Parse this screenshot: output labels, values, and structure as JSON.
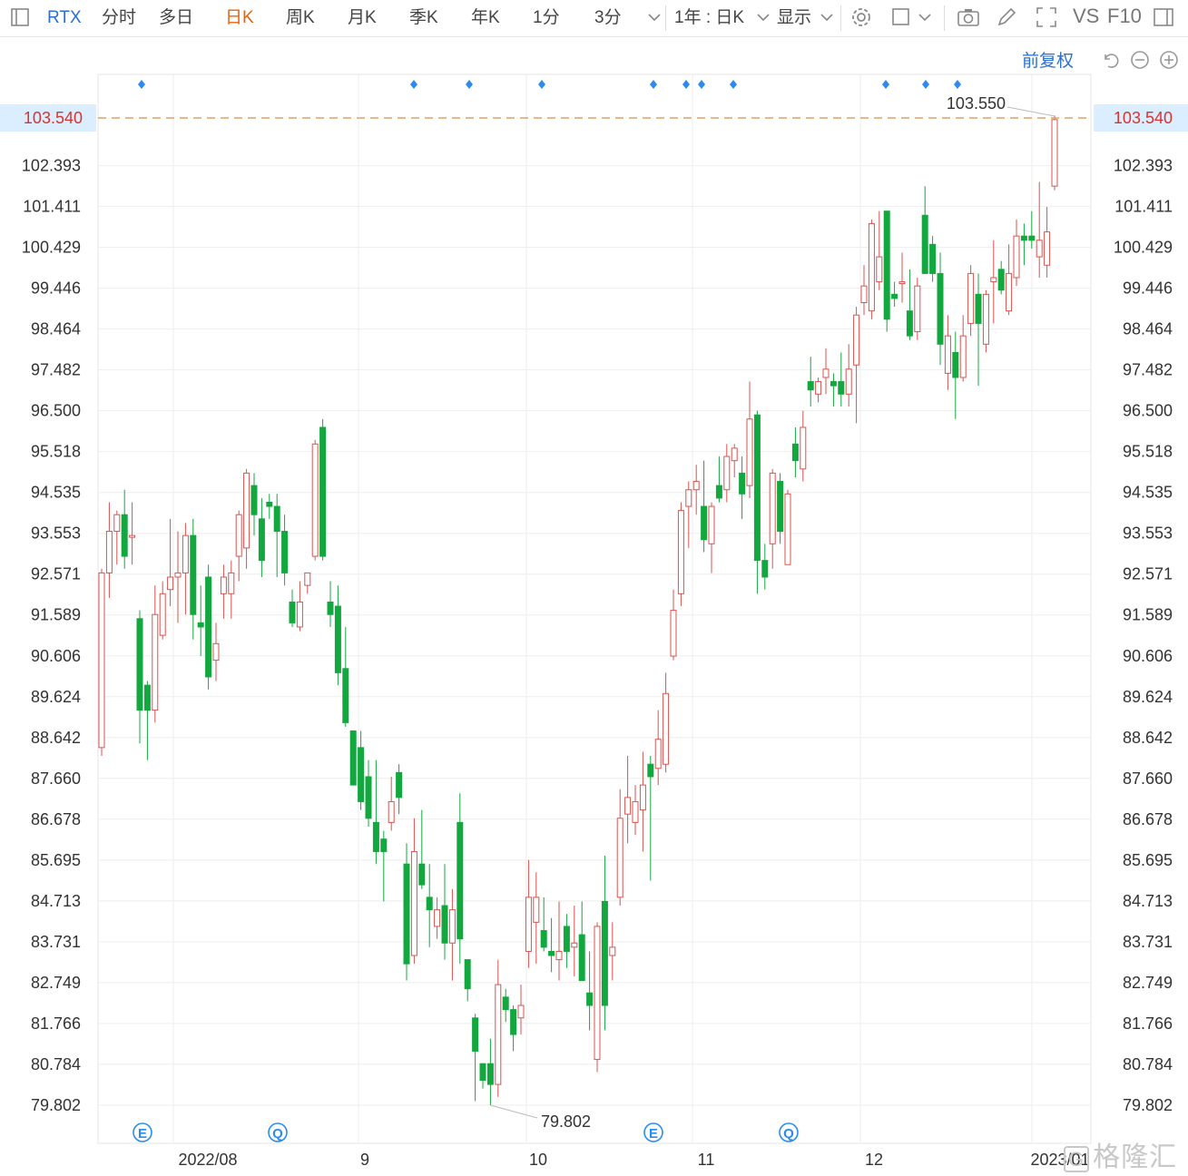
{
  "toolbar": {
    "symbol": "RTX",
    "tabs": [
      "分时",
      "多日",
      "日K",
      "周K",
      "月K",
      "季K",
      "年K",
      "1分",
      "3分"
    ],
    "active_tab": "日K",
    "period_select": "1年 : 日K",
    "display_label": "显示",
    "vs_label": "VS",
    "f10_label": "F10"
  },
  "adjust_label": "前复权",
  "price_line": {
    "value": "103.540",
    "color": "#e0a060"
  },
  "high_annotation": "103.550",
  "low_annotation": "79.802",
  "event_markers": [
    "E",
    "Q",
    "E",
    "Q"
  ],
  "watermark": "格隆汇",
  "colors": {
    "up": "#d9534f",
    "down": "#13a83f",
    "accent": "#2a6fd1",
    "price_bg": "#dbeeff",
    "price_text": "#d9332e",
    "grid": "#eeeeee",
    "marker": "#2a8cf0"
  },
  "chart_data": {
    "type": "candlestick",
    "title": "RTX",
    "ylim": [
      79.0,
      104.4
    ],
    "y_ticks": [
      "102.393",
      "101.411",
      "100.429",
      "99.446",
      "98.464",
      "97.482",
      "96.500",
      "95.518",
      "94.535",
      "93.553",
      "92.571",
      "91.589",
      "90.606",
      "89.624",
      "88.642",
      "87.660",
      "86.678",
      "85.695",
      "84.713",
      "83.731",
      "82.749",
      "81.766",
      "80.784",
      "79.802"
    ],
    "x_tick_labels": [
      "2022/08",
      "9",
      "10",
      "11",
      "12",
      "2023/01"
    ],
    "candles": [
      [
        88.4,
        92.6,
        88.2,
        92.7
      ],
      [
        92.6,
        93.6,
        92.0,
        94.3
      ],
      [
        93.6,
        94.0,
        92.8,
        94.1
      ],
      [
        94.0,
        93.0,
        92.7,
        94.6
      ],
      [
        93.5,
        93.5,
        92.8,
        94.3
      ],
      [
        91.5,
        89.3,
        88.5,
        91.7
      ],
      [
        89.9,
        89.3,
        88.1,
        90.0
      ],
      [
        89.3,
        91.6,
        89.0,
        92.3
      ],
      [
        91.1,
        92.1,
        91.0,
        92.4
      ],
      [
        92.2,
        92.5,
        91.8,
        93.9
      ],
      [
        92.5,
        92.6,
        91.4,
        93.6
      ],
      [
        92.6,
        93.5,
        91.6,
        93.8
      ],
      [
        93.5,
        91.6,
        91.0,
        93.9
      ],
      [
        91.4,
        91.3,
        90.6,
        92.3
      ],
      [
        92.5,
        90.1,
        89.8,
        92.8
      ],
      [
        90.5,
        90.9,
        90.0,
        91.4
      ],
      [
        92.1,
        92.5,
        91.5,
        92.8
      ],
      [
        92.1,
        92.6,
        91.5,
        92.9
      ],
      [
        93.0,
        94.0,
        92.4,
        94.1
      ],
      [
        93.2,
        95.0,
        92.7,
        95.1
      ],
      [
        94.7,
        94.0,
        93.5,
        95.0
      ],
      [
        93.9,
        92.9,
        92.5,
        94.4
      ],
      [
        94.3,
        94.2,
        93.9,
        94.5
      ],
      [
        94.2,
        93.6,
        92.5,
        94.5
      ],
      [
        93.6,
        92.6,
        92.3,
        94.0
      ],
      [
        91.9,
        91.4,
        91.3,
        92.2
      ],
      [
        91.3,
        91.9,
        91.2,
        92.4
      ],
      [
        92.3,
        92.6,
        92.1,
        92.6
      ],
      [
        93.0,
        95.7,
        92.9,
        95.8
      ],
      [
        96.1,
        93.0,
        92.9,
        96.3
      ],
      [
        91.9,
        91.6,
        91.3,
        92.4
      ],
      [
        91.8,
        90.2,
        89.9,
        92.3
      ],
      [
        90.3,
        89.0,
        88.9,
        91.3
      ],
      [
        88.8,
        87.5,
        87.5,
        88.8
      ],
      [
        88.4,
        87.1,
        86.9,
        88.8
      ],
      [
        87.7,
        86.7,
        86.5,
        88.1
      ],
      [
        86.6,
        85.9,
        85.6,
        88.1
      ],
      [
        86.2,
        85.9,
        84.7,
        86.4
      ],
      [
        86.6,
        87.1,
        86.4,
        87.7
      ],
      [
        87.8,
        87.2,
        86.8,
        88.0
      ],
      [
        85.6,
        83.2,
        82.8,
        86.1
      ],
      [
        83.4,
        85.9,
        83.2,
        86.7
      ],
      [
        85.6,
        85.1,
        85.0,
        86.9
      ],
      [
        84.8,
        84.5,
        83.6,
        85.6
      ],
      [
        84.1,
        84.5,
        83.8,
        84.8
      ],
      [
        84.6,
        83.7,
        83.3,
        85.6
      ],
      [
        83.7,
        84.5,
        82.8,
        85.0
      ],
      [
        86.6,
        83.8,
        83.2,
        87.3
      ],
      [
        83.3,
        82.6,
        82.3,
        83.3
      ],
      [
        81.9,
        81.1,
        79.9,
        82.0
      ],
      [
        80.8,
        80.4,
        80.2,
        80.8
      ],
      [
        80.8,
        80.3,
        79.8,
        81.4
      ],
      [
        80.3,
        82.7,
        80.0,
        83.3
      ],
      [
        82.4,
        82.1,
        81.8,
        82.6
      ],
      [
        82.1,
        81.5,
        81.1,
        82.2
      ],
      [
        81.9,
        82.2,
        81.5,
        82.7
      ],
      [
        83.5,
        84.8,
        83.1,
        85.7
      ],
      [
        84.2,
        84.8,
        83.2,
        85.4
      ],
      [
        84.0,
        83.6,
        83.5,
        84.8
      ],
      [
        83.5,
        83.4,
        83.0,
        84.3
      ],
      [
        83.3,
        83.5,
        82.8,
        84.7
      ],
      [
        84.1,
        83.5,
        83.1,
        84.4
      ],
      [
        83.6,
        83.7,
        82.9,
        84.6
      ],
      [
        83.9,
        82.8,
        82.8,
        84.7
      ],
      [
        82.5,
        82.2,
        81.6,
        83.5
      ],
      [
        80.9,
        84.1,
        80.6,
        84.2
      ],
      [
        84.7,
        82.2,
        81.6,
        85.8
      ],
      [
        83.4,
        83.6,
        82.8,
        84.2
      ],
      [
        84.8,
        86.7,
        84.6,
        87.4
      ],
      [
        86.8,
        87.2,
        86.1,
        88.2
      ],
      [
        86.6,
        87.1,
        86.3,
        87.5
      ],
      [
        86.9,
        87.5,
        85.9,
        88.3
      ],
      [
        88.0,
        87.7,
        85.2,
        88.2
      ],
      [
        87.9,
        88.6,
        87.5,
        89.3
      ],
      [
        88.0,
        89.7,
        87.8,
        90.2
      ],
      [
        90.6,
        91.7,
        90.5,
        92.2
      ],
      [
        92.1,
        94.1,
        91.8,
        94.3
      ],
      [
        94.2,
        94.6,
        93.2,
        94.8
      ],
      [
        94.6,
        94.8,
        94.0,
        95.2
      ],
      [
        94.2,
        93.4,
        93.1,
        95.3
      ],
      [
        93.3,
        94.2,
        92.6,
        94.3
      ],
      [
        94.7,
        94.4,
        94.3,
        95.4
      ],
      [
        94.6,
        95.4,
        94.3,
        95.7
      ],
      [
        95.3,
        95.6,
        94.9,
        95.7
      ],
      [
        95.0,
        94.5,
        93.9,
        95.4
      ],
      [
        94.7,
        96.3,
        94.4,
        97.2
      ],
      [
        96.4,
        92.9,
        92.1,
        96.5
      ],
      [
        92.9,
        92.5,
        92.2,
        93.3
      ],
      [
        93.3,
        95.0,
        92.7,
        95.1
      ],
      [
        94.8,
        93.6,
        93.3,
        95.0
      ],
      [
        92.8,
        94.5,
        92.8,
        94.6
      ],
      [
        95.7,
        95.3,
        94.9,
        96.1
      ],
      [
        95.1,
        96.1,
        94.8,
        96.5
      ],
      [
        97.2,
        97.0,
        96.6,
        97.8
      ],
      [
        96.9,
        97.2,
        96.7,
        97.3
      ],
      [
        97.3,
        97.5,
        96.9,
        98.0
      ],
      [
        97.2,
        97.1,
        96.6,
        97.4
      ],
      [
        97.2,
        96.9,
        96.6,
        97.9
      ],
      [
        96.9,
        97.5,
        96.6,
        98.1
      ],
      [
        97.6,
        98.8,
        96.2,
        99.0
      ],
      [
        99.1,
        99.5,
        98.8,
        100.0
      ],
      [
        98.9,
        101.0,
        98.7,
        101.1
      ],
      [
        99.6,
        100.2,
        99.4,
        101.3
      ],
      [
        101.3,
        98.7,
        98.4,
        101.3
      ],
      [
        99.3,
        99.2,
        99.0,
        99.6
      ],
      [
        99.6,
        99.6,
        99.1,
        100.3
      ],
      [
        98.9,
        98.3,
        98.2,
        99.9
      ],
      [
        98.4,
        99.5,
        98.2,
        99.7
      ],
      [
        101.2,
        99.8,
        99.8,
        101.9
      ],
      [
        100.5,
        99.8,
        99.6,
        100.7
      ],
      [
        99.8,
        98.1,
        97.6,
        100.3
      ],
      [
        97.4,
        98.3,
        97.0,
        98.8
      ],
      [
        97.9,
        97.3,
        96.3,
        98.4
      ],
      [
        97.3,
        98.3,
        97.2,
        98.8
      ],
      [
        98.6,
        99.8,
        98.3,
        100.0
      ],
      [
        99.3,
        98.6,
        97.1,
        99.8
      ],
      [
        98.1,
        99.3,
        97.9,
        99.4
      ],
      [
        99.6,
        99.7,
        98.6,
        100.6
      ],
      [
        99.9,
        99.4,
        99.3,
        100.1
      ],
      [
        98.9,
        99.8,
        98.8,
        100.5
      ],
      [
        99.7,
        100.7,
        99.5,
        101.1
      ],
      [
        100.7,
        100.6,
        100.0,
        101.0
      ],
      [
        100.7,
        100.6,
        100.4,
        101.3
      ],
      [
        100.2,
        100.6,
        99.7,
        102.0
      ],
      [
        100.0,
        100.8,
        99.7,
        101.4
      ],
      [
        101.9,
        103.5,
        101.8,
        103.6
      ]
    ]
  }
}
